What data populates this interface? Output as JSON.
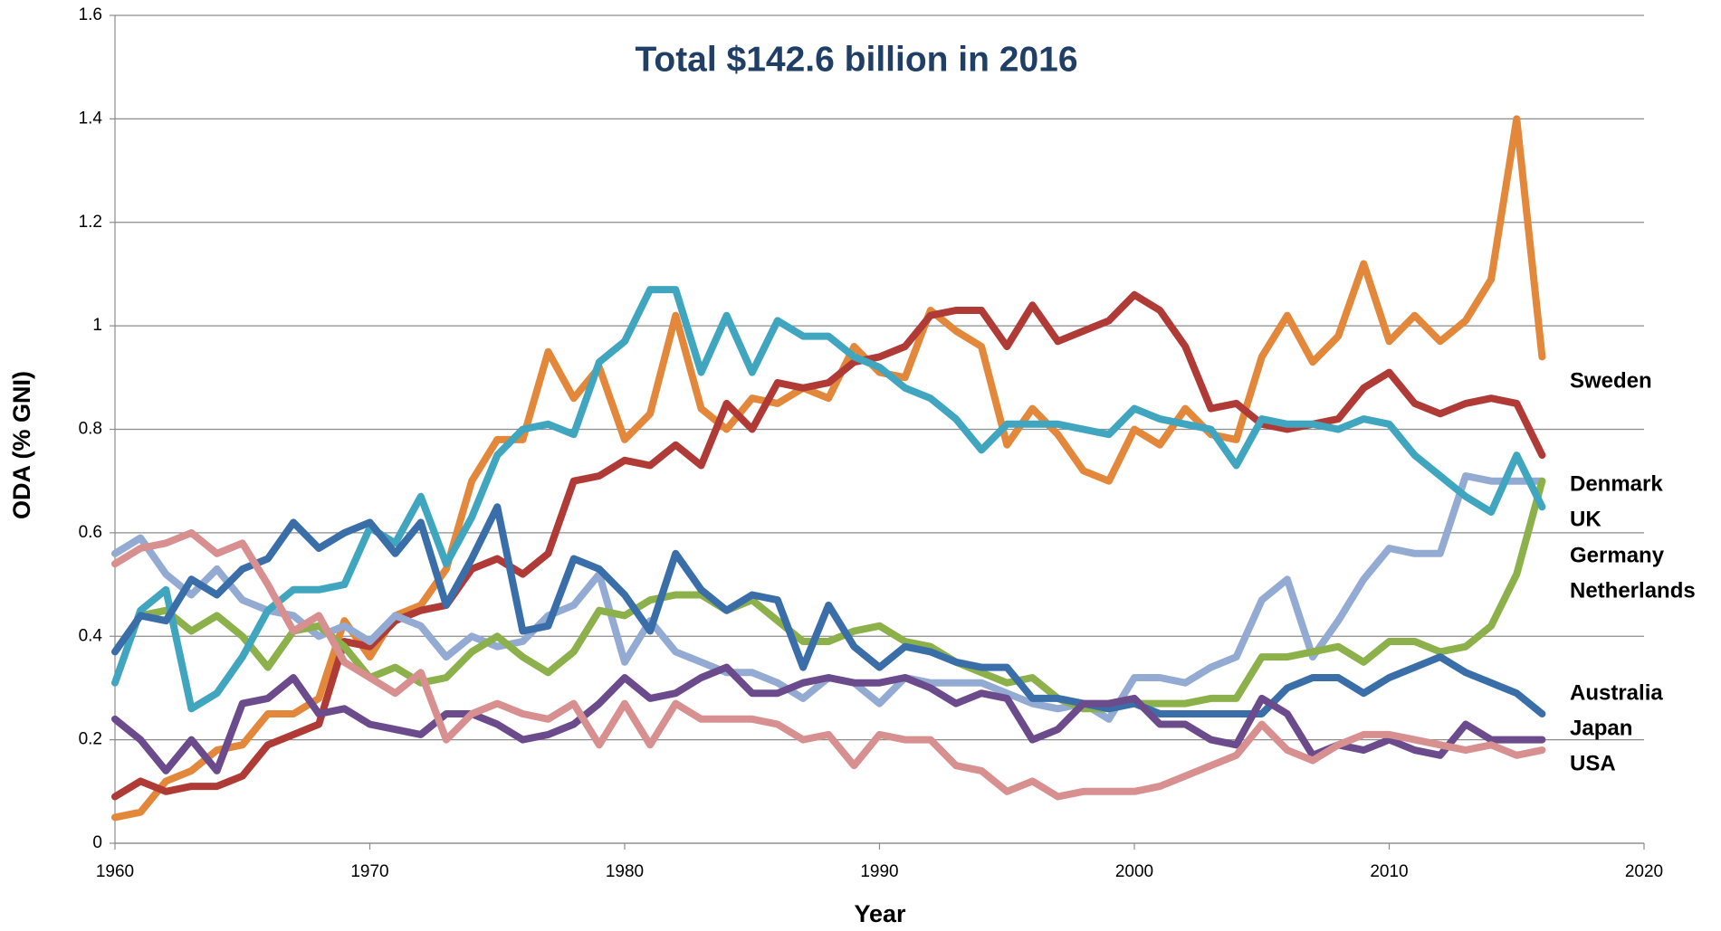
{
  "chart_data": {
    "type": "line",
    "title": "Total $142.6 billion in 2016",
    "x_label": "Year",
    "y_label": "ODA (% GNI)",
    "xlim": [
      1960,
      2020
    ],
    "xticks": [
      1960,
      1970,
      1980,
      1990,
      2000,
      2010,
      2020
    ],
    "ylim": [
      0,
      1.6
    ],
    "yticks": [
      0,
      0.2,
      0.4,
      0.6,
      0.8,
      1,
      1.2,
      1.4,
      1.6
    ],
    "grid": true,
    "x": [
      1960,
      1961,
      1962,
      1963,
      1964,
      1965,
      1966,
      1967,
      1968,
      1969,
      1970,
      1971,
      1972,
      1973,
      1974,
      1975,
      1976,
      1977,
      1978,
      1979,
      1980,
      1981,
      1982,
      1983,
      1984,
      1985,
      1986,
      1987,
      1988,
      1989,
      1990,
      1991,
      1992,
      1993,
      1994,
      1995,
      1996,
      1997,
      1998,
      1999,
      2000,
      2001,
      2002,
      2003,
      2004,
      2005,
      2006,
      2007,
      2008,
      2009,
      2010,
      2011,
      2012,
      2013,
      2014,
      2015,
      2016
    ],
    "series": [
      {
        "name": "Sweden",
        "color": "#e3873a",
        "values": [
          0.05,
          0.06,
          0.12,
          0.14,
          0.18,
          0.19,
          0.25,
          0.25,
          0.28,
          0.43,
          0.36,
          0.44,
          0.46,
          0.53,
          0.7,
          0.78,
          0.78,
          0.95,
          0.86,
          0.92,
          0.78,
          0.83,
          1.02,
          0.84,
          0.8,
          0.86,
          0.85,
          0.88,
          0.86,
          0.96,
          0.91,
          0.9,
          1.03,
          0.99,
          0.96,
          0.77,
          0.84,
          0.79,
          0.72,
          0.7,
          0.8,
          0.77,
          0.84,
          0.79,
          0.78,
          0.94,
          1.02,
          0.93,
          0.98,
          1.12,
          0.97,
          1.02,
          0.97,
          1.01,
          1.09,
          1.4,
          0.94
        ]
      },
      {
        "name": "Denmark",
        "color": "#b03a36",
        "values": [
          0.09,
          0.12,
          0.1,
          0.11,
          0.11,
          0.13,
          0.19,
          0.21,
          0.23,
          0.39,
          0.38,
          0.43,
          0.45,
          0.46,
          0.53,
          0.55,
          0.52,
          0.56,
          0.7,
          0.71,
          0.74,
          0.73,
          0.77,
          0.73,
          0.85,
          0.8,
          0.89,
          0.88,
          0.89,
          0.93,
          0.94,
          0.96,
          1.02,
          1.03,
          1.03,
          0.96,
          1.04,
          0.97,
          0.99,
          1.01,
          1.06,
          1.03,
          0.96,
          0.84,
          0.85,
          0.81,
          0.8,
          0.81,
          0.82,
          0.88,
          0.91,
          0.85,
          0.83,
          0.85,
          0.86,
          0.85,
          0.75
        ]
      },
      {
        "name": "UK",
        "color": "#93abd3",
        "values": [
          0.56,
          0.59,
          0.52,
          0.48,
          0.53,
          0.47,
          0.45,
          0.44,
          0.4,
          0.42,
          0.39,
          0.44,
          0.42,
          0.36,
          0.4,
          0.38,
          0.39,
          0.44,
          0.46,
          0.52,
          0.35,
          0.43,
          0.37,
          0.35,
          0.33,
          0.33,
          0.31,
          0.28,
          0.32,
          0.31,
          0.27,
          0.32,
          0.31,
          0.31,
          0.31,
          0.29,
          0.27,
          0.26,
          0.27,
          0.24,
          0.32,
          0.32,
          0.31,
          0.34,
          0.36,
          0.47,
          0.51,
          0.36,
          0.43,
          0.51,
          0.57,
          0.56,
          0.56,
          0.71,
          0.7,
          0.7,
          0.7
        ]
      },
      {
        "name": "Germany",
        "color": "#8cb04a",
        "values": [
          null,
          0.44,
          0.45,
          0.41,
          0.44,
          0.4,
          0.34,
          0.41,
          0.42,
          0.38,
          0.32,
          0.34,
          0.31,
          0.32,
          0.37,
          0.4,
          0.36,
          0.33,
          0.37,
          0.45,
          0.44,
          0.47,
          0.48,
          0.48,
          0.45,
          0.47,
          0.43,
          0.39,
          0.39,
          0.41,
          0.42,
          0.39,
          0.38,
          0.35,
          0.33,
          0.31,
          0.32,
          0.28,
          0.26,
          0.26,
          0.27,
          0.27,
          0.27,
          0.28,
          0.28,
          0.36,
          0.36,
          0.37,
          0.38,
          0.35,
          0.39,
          0.39,
          0.37,
          0.38,
          0.42,
          0.52,
          0.7
        ]
      },
      {
        "name": "Netherlands",
        "color": "#40a5bf",
        "values": [
          0.31,
          0.45,
          0.49,
          0.26,
          0.29,
          0.36,
          0.45,
          0.49,
          0.49,
          0.5,
          0.61,
          0.58,
          0.67,
          0.54,
          0.63,
          0.75,
          0.8,
          0.81,
          0.79,
          0.93,
          0.97,
          1.07,
          1.07,
          0.91,
          1.02,
          0.91,
          1.01,
          0.98,
          0.98,
          0.94,
          0.92,
          0.88,
          0.86,
          0.82,
          0.76,
          0.81,
          0.81,
          0.81,
          0.8,
          0.79,
          0.84,
          0.82,
          0.81,
          0.8,
          0.73,
          0.82,
          0.81,
          0.81,
          0.8,
          0.82,
          0.81,
          0.75,
          0.71,
          0.67,
          0.64,
          0.75,
          0.65
        ]
      },
      {
        "name": "Australia",
        "color": "#3a6ea8",
        "values": [
          0.37,
          0.44,
          0.43,
          0.51,
          0.48,
          0.53,
          0.55,
          0.62,
          0.57,
          0.6,
          0.62,
          0.56,
          0.62,
          0.46,
          0.55,
          0.65,
          0.41,
          0.42,
          0.55,
          0.53,
          0.48,
          0.41,
          0.56,
          0.49,
          0.45,
          0.48,
          0.47,
          0.34,
          0.46,
          0.38,
          0.34,
          0.38,
          0.37,
          0.35,
          0.34,
          0.34,
          0.28,
          0.28,
          0.27,
          0.26,
          0.27,
          0.25,
          0.25,
          0.25,
          0.25,
          0.25,
          0.3,
          0.32,
          0.32,
          0.29,
          0.32,
          0.34,
          0.36,
          0.33,
          0.31,
          0.29,
          0.25
        ]
      },
      {
        "name": "Japan",
        "color": "#6b4b8c",
        "values": [
          0.24,
          0.2,
          0.14,
          0.2,
          0.14,
          0.27,
          0.28,
          0.32,
          0.25,
          0.26,
          0.23,
          0.22,
          0.21,
          0.25,
          0.25,
          0.23,
          0.2,
          0.21,
          0.23,
          0.27,
          0.32,
          0.28,
          0.29,
          0.32,
          0.34,
          0.29,
          0.29,
          0.31,
          0.32,
          0.31,
          0.31,
          0.32,
          0.3,
          0.27,
          0.29,
          0.28,
          0.2,
          0.22,
          0.27,
          0.27,
          0.28,
          0.23,
          0.23,
          0.2,
          0.19,
          0.28,
          0.25,
          0.17,
          0.19,
          0.18,
          0.2,
          0.18,
          0.17,
          0.23,
          0.2,
          0.2,
          0.2
        ]
      },
      {
        "name": "USA",
        "color": "#d7908f",
        "values": [
          0.54,
          0.57,
          0.58,
          0.6,
          0.56,
          0.58,
          0.5,
          0.41,
          0.44,
          0.35,
          0.32,
          0.29,
          0.33,
          0.2,
          0.25,
          0.27,
          0.25,
          0.24,
          0.27,
          0.19,
          0.27,
          0.19,
          0.27,
          0.24,
          0.24,
          0.24,
          0.23,
          0.2,
          0.21,
          0.15,
          0.21,
          0.2,
          0.2,
          0.15,
          0.14,
          0.1,
          0.12,
          0.09,
          0.1,
          0.1,
          0.1,
          0.11,
          0.13,
          0.15,
          0.17,
          0.23,
          0.18,
          0.16,
          0.19,
          0.21,
          0.21,
          0.2,
          0.19,
          0.18,
          0.19,
          0.17,
          0.18
        ]
      }
    ]
  }
}
